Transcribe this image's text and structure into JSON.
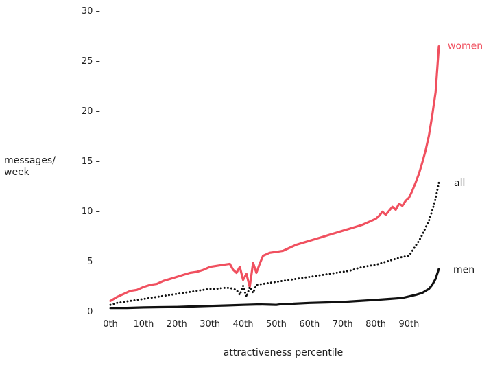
{
  "chart_data": {
    "type": "line",
    "title": "",
    "xlabel": "attractiveness percentile",
    "ylabel_lines": [
      "messages/",
      "week"
    ],
    "xlim": [
      0,
      100
    ],
    "ylim": [
      0,
      30
    ],
    "x_ticks": [
      {
        "value": 0,
        "label": "0th"
      },
      {
        "value": 10,
        "label": "10th"
      },
      {
        "value": 20,
        "label": "20th"
      },
      {
        "value": 30,
        "label": "30th"
      },
      {
        "value": 40,
        "label": "40th"
      },
      {
        "value": 50,
        "label": "50th"
      },
      {
        "value": 60,
        "label": "60th"
      },
      {
        "value": 70,
        "label": "70th"
      },
      {
        "value": 80,
        "label": "80th"
      },
      {
        "value": 90,
        "label": "90th"
      }
    ],
    "y_ticks": [
      {
        "value": 0,
        "label": "0 –"
      },
      {
        "value": 5,
        "label": "5 –"
      },
      {
        "value": 10,
        "label": "10 –"
      },
      {
        "value": 15,
        "label": "15 –"
      },
      {
        "value": 20,
        "label": "20 –"
      },
      {
        "value": 25,
        "label": "25 –"
      },
      {
        "value": 30,
        "label": "30 –"
      }
    ],
    "grid": false,
    "legend": "inline labels at right end of each series",
    "series": [
      {
        "name": "women",
        "color": "#f0505f",
        "style": "solid",
        "x": [
          0,
          2,
          4,
          6,
          8,
          10,
          12,
          14,
          16,
          18,
          20,
          22,
          24,
          26,
          28,
          30,
          32,
          34,
          36,
          37,
          38,
          39,
          40,
          41,
          42,
          43,
          44,
          45,
          46,
          48,
          50,
          52,
          54,
          56,
          58,
          60,
          62,
          64,
          66,
          68,
          70,
          72,
          74,
          76,
          78,
          80,
          81,
          82,
          83,
          84,
          85,
          86,
          87,
          88,
          89,
          90,
          91,
          92,
          93,
          94,
          95,
          96,
          97,
          98,
          99
        ],
        "values": [
          1.0,
          1.4,
          1.7,
          2.0,
          2.1,
          2.4,
          2.6,
          2.7,
          3.0,
          3.2,
          3.4,
          3.6,
          3.8,
          3.9,
          4.1,
          4.4,
          4.5,
          4.6,
          4.7,
          4.1,
          3.8,
          4.4,
          3.1,
          3.7,
          2.4,
          4.8,
          3.8,
          4.7,
          5.5,
          5.8,
          5.9,
          6.0,
          6.3,
          6.6,
          6.8,
          7.0,
          7.2,
          7.4,
          7.6,
          7.8,
          8.0,
          8.2,
          8.4,
          8.6,
          8.9,
          9.2,
          9.5,
          9.9,
          9.6,
          10.0,
          10.4,
          10.1,
          10.7,
          10.5,
          11.0,
          11.3,
          12.0,
          12.8,
          13.7,
          14.8,
          16.0,
          17.5,
          19.5,
          21.8,
          26.4
        ]
      },
      {
        "name": "all",
        "color": "#111111",
        "style": "dotted",
        "x": [
          0,
          2,
          4,
          6,
          8,
          10,
          12,
          14,
          16,
          18,
          20,
          22,
          24,
          26,
          28,
          30,
          32,
          34,
          36,
          38,
          39,
          40,
          41,
          42,
          43,
          44,
          46,
          48,
          50,
          52,
          54,
          56,
          58,
          60,
          62,
          64,
          66,
          68,
          70,
          72,
          74,
          76,
          78,
          80,
          82,
          84,
          86,
          88,
          90,
          91,
          92,
          93,
          94,
          95,
          96,
          97,
          98,
          99
        ],
        "values": [
          0.6,
          0.8,
          0.9,
          1.0,
          1.1,
          1.2,
          1.3,
          1.4,
          1.5,
          1.6,
          1.7,
          1.8,
          1.9,
          2.0,
          2.1,
          2.2,
          2.2,
          2.3,
          2.3,
          2.1,
          1.6,
          2.5,
          1.4,
          2.4,
          1.8,
          2.6,
          2.7,
          2.8,
          2.9,
          3.0,
          3.1,
          3.2,
          3.3,
          3.4,
          3.5,
          3.6,
          3.7,
          3.8,
          3.9,
          4.0,
          4.2,
          4.4,
          4.5,
          4.6,
          4.8,
          5.0,
          5.2,
          5.4,
          5.5,
          6.0,
          6.5,
          7.0,
          7.6,
          8.3,
          9.0,
          10.0,
          11.2,
          12.8
        ]
      },
      {
        "name": "men",
        "color": "#111111",
        "style": "solid",
        "x": [
          0,
          5,
          10,
          15,
          20,
          25,
          30,
          35,
          40,
          45,
          48,
          50,
          52,
          55,
          60,
          65,
          70,
          75,
          80,
          84,
          86,
          88,
          90,
          92,
          94,
          95,
          96,
          97,
          98,
          99
        ],
        "values": [
          0.3,
          0.3,
          0.35,
          0.38,
          0.4,
          0.45,
          0.5,
          0.55,
          0.6,
          0.65,
          0.62,
          0.6,
          0.7,
          0.72,
          0.8,
          0.85,
          0.9,
          1.0,
          1.1,
          1.2,
          1.25,
          1.3,
          1.45,
          1.6,
          1.8,
          2.0,
          2.2,
          2.6,
          3.2,
          4.2
        ]
      }
    ]
  }
}
